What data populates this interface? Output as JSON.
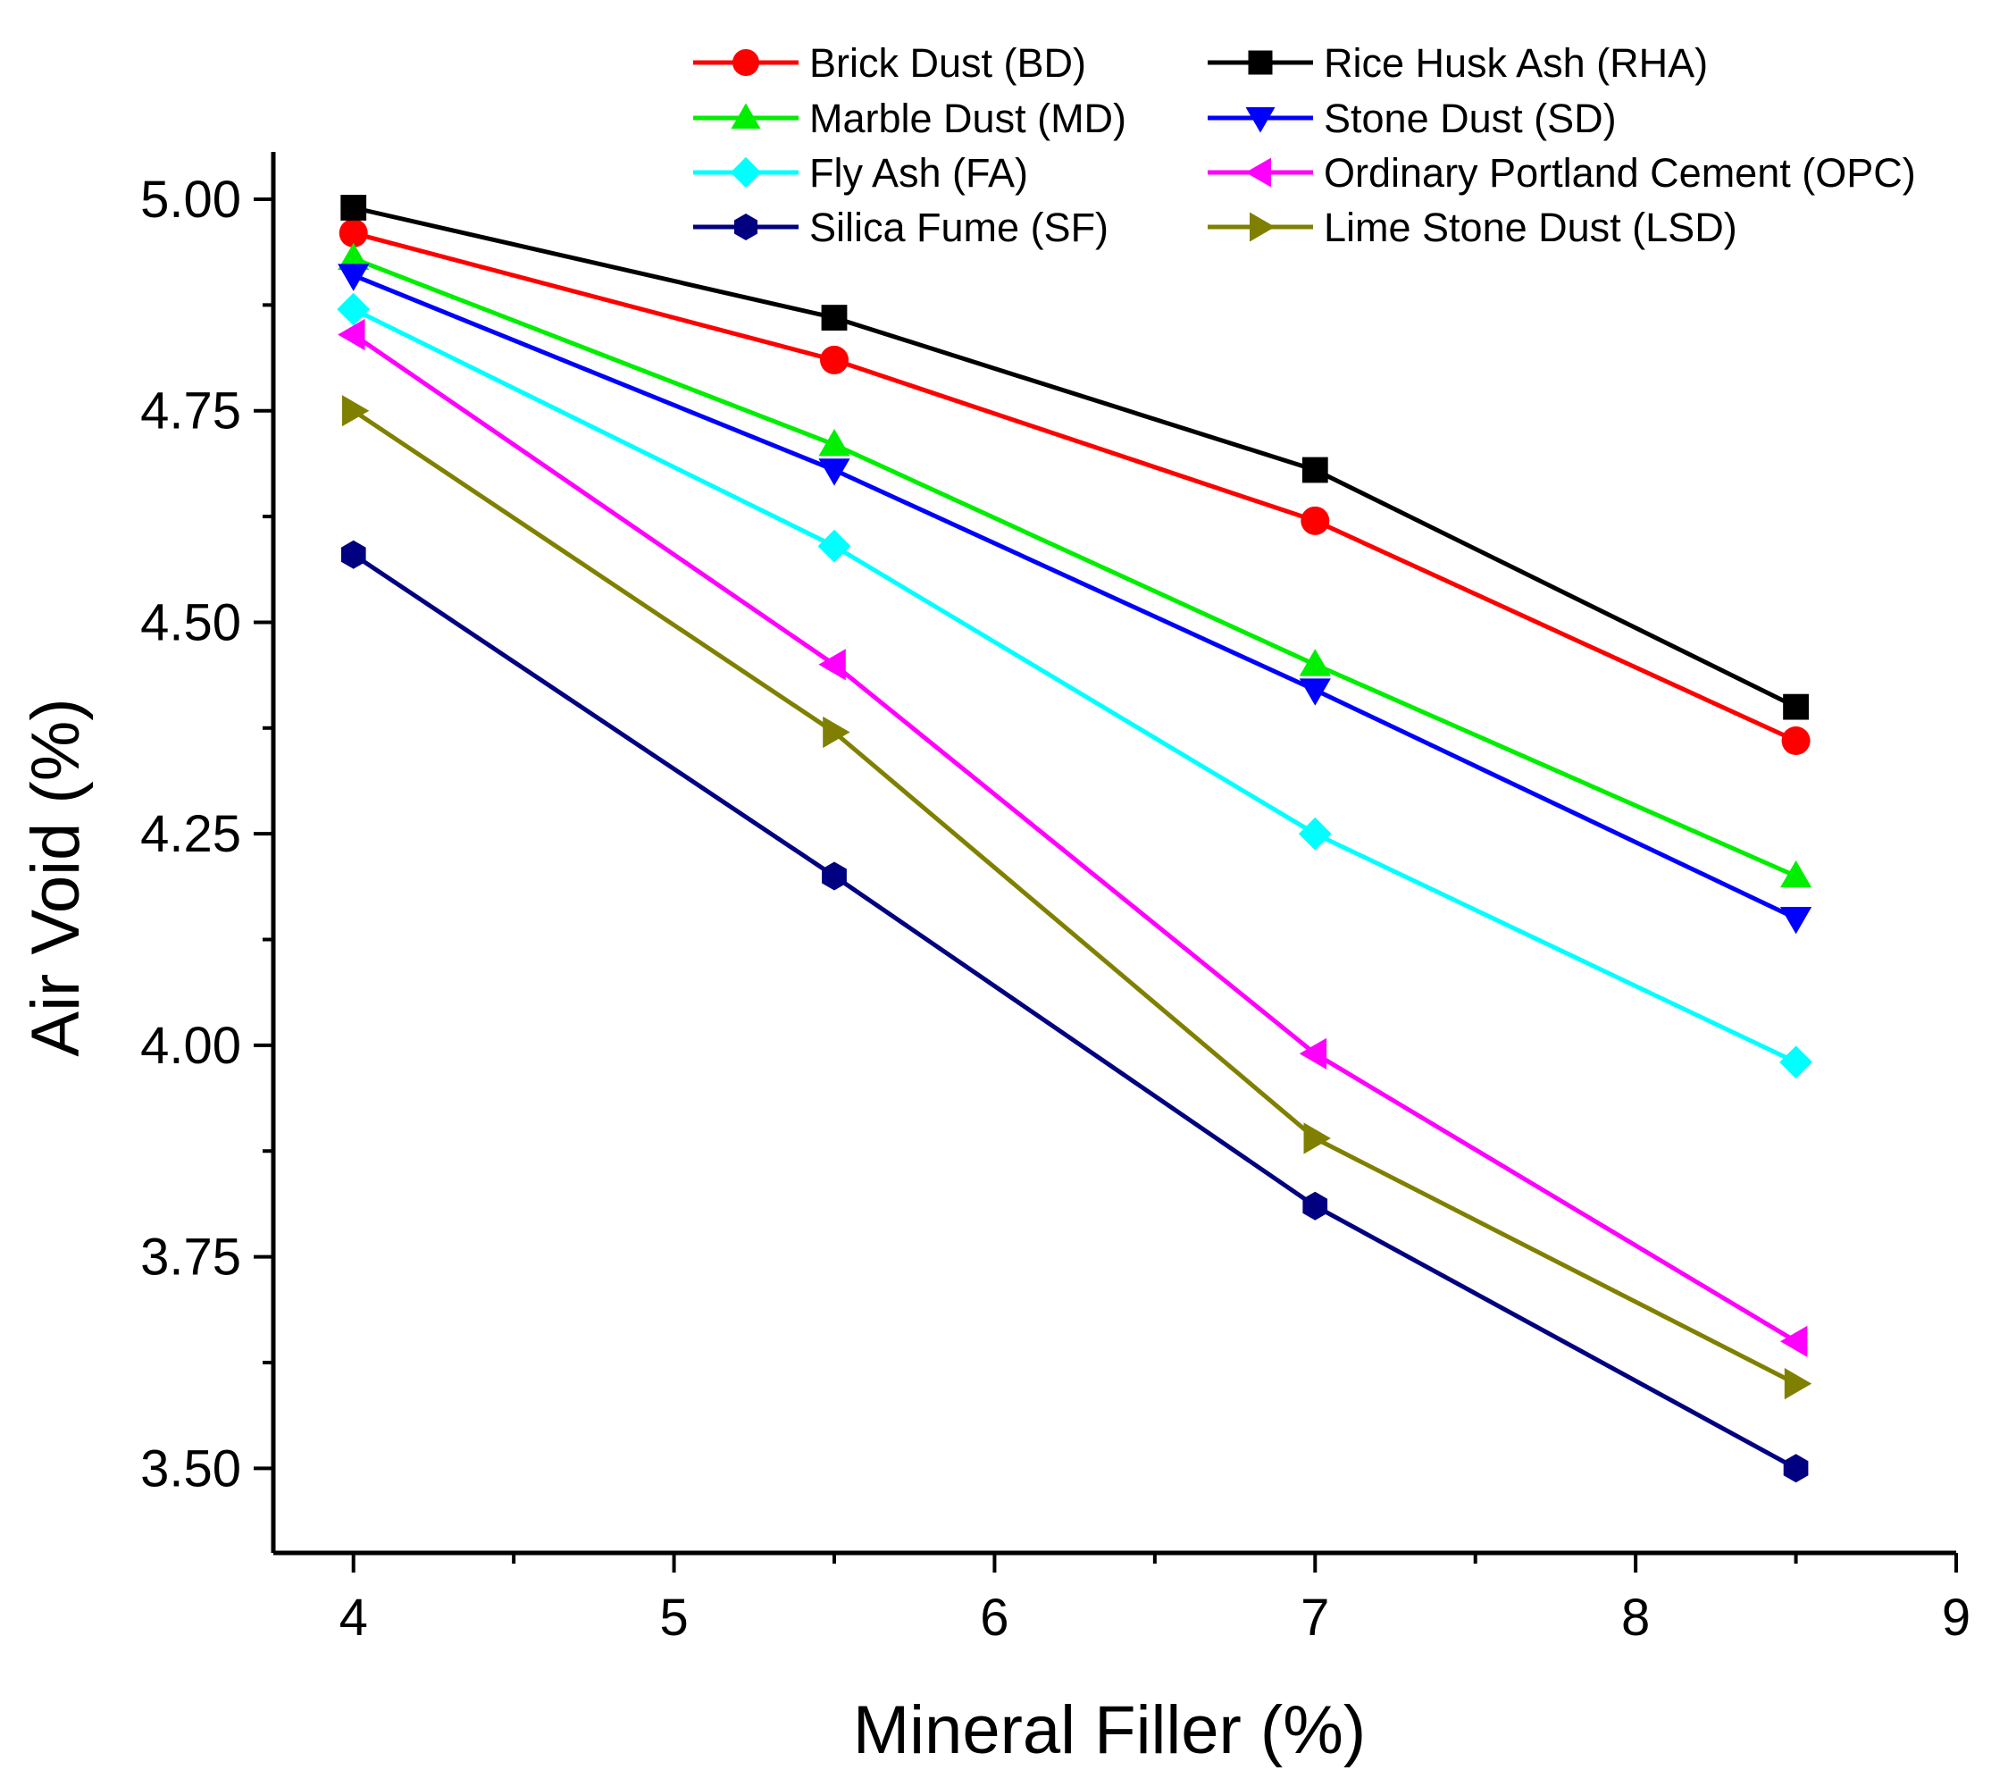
{
  "chart_data": {
    "type": "line",
    "title": "",
    "xlabel": "Mineral Filler (%)",
    "ylabel": "Air Void (%)",
    "xlim": [
      3.75,
      9
    ],
    "ylim": [
      3.4,
      5.0
    ],
    "grid": false,
    "legend_position": "top",
    "x": [
      4,
      5.5,
      7,
      8.5
    ],
    "x_ticks": [
      4,
      5,
      6,
      7,
      8,
      9
    ],
    "x_tick_labels": [
      "4",
      "5",
      "6",
      "7",
      "8",
      "9"
    ],
    "y_ticks": [
      3.5,
      3.75,
      4.0,
      4.25,
      4.5,
      4.75,
      5.0
    ],
    "y_tick_labels": [
      "3.50",
      "3.75",
      "4.00",
      "4.25",
      "4.50",
      "4.75",
      "5.00"
    ],
    "series": [
      {
        "name": "Brick Dust (BD)",
        "color": "#ff0000",
        "marker": "circle",
        "values": [
          4.96,
          4.81,
          4.62,
          4.36
        ]
      },
      {
        "name": "Rice Husk Ash (RHA)",
        "color": "#000000",
        "marker": "square",
        "values": [
          4.99,
          4.86,
          4.68,
          4.4
        ]
      },
      {
        "name": "Marble Dust (MD)",
        "color": "#00ee00",
        "marker": "triangle-up",
        "values": [
          4.93,
          4.71,
          4.45,
          4.2
        ]
      },
      {
        "name": "Stone Dust (SD)",
        "color": "#0000ff",
        "marker": "triangle-down",
        "values": [
          4.91,
          4.68,
          4.42,
          4.15
        ]
      },
      {
        "name": "Fly Ash (FA)",
        "color": "#00ffff",
        "marker": "diamond",
        "values": [
          4.87,
          4.59,
          4.25,
          3.98
        ]
      },
      {
        "name": "Ordinary Portland Cement (OPC)",
        "color": "#ff00ff",
        "marker": "triangle-left",
        "values": [
          4.84,
          4.45,
          3.99,
          3.65
        ]
      },
      {
        "name": "Silica Fume (SF)",
        "color": "#000080",
        "marker": "hexagon",
        "values": [
          4.58,
          4.2,
          3.81,
          3.5
        ]
      },
      {
        "name": "Lime Stone Dust (LSD)",
        "color": "#808000",
        "marker": "triangle-right",
        "values": [
          4.75,
          4.37,
          3.89,
          3.6
        ]
      }
    ]
  }
}
